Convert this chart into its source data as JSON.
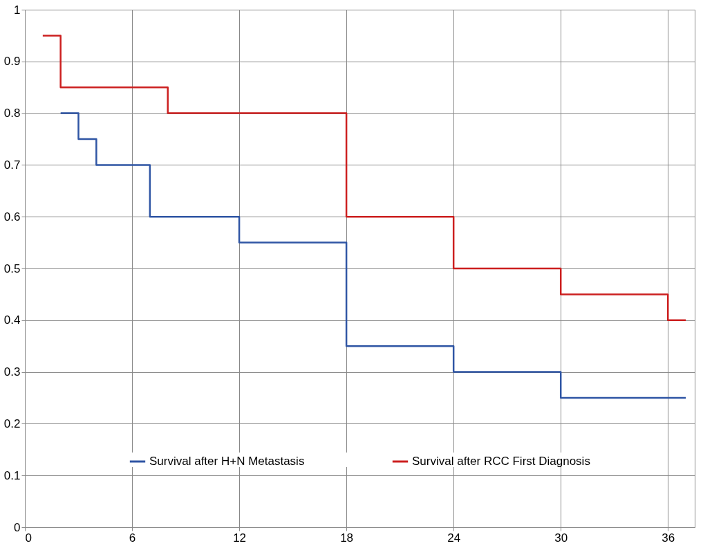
{
  "chart_data": {
    "type": "step",
    "xlim": [
      0,
      37.5
    ],
    "ylim": [
      0,
      1
    ],
    "xticks": [
      0,
      6,
      12,
      18,
      24,
      30,
      36
    ],
    "yticks": [
      0,
      0.1,
      0.2,
      0.3,
      0.4,
      0.5,
      0.6,
      0.7,
      0.8,
      0.9,
      1
    ],
    "grid": true,
    "legend": "bottom",
    "line_style": "solid",
    "marker": "none",
    "series": [
      {
        "name": "Survival after H+N Metastasis",
        "color": "#2f55a4",
        "x": [
          2,
          3,
          4,
          7,
          12,
          18,
          24,
          30,
          37
        ],
        "values": [
          0.8,
          0.75,
          0.7,
          0.6,
          0.55,
          0.35,
          0.3,
          0.25,
          0.25
        ]
      },
      {
        "name": "Survival after RCC First Diagnosis",
        "color": "#cc1f1f",
        "x": [
          1,
          2,
          8,
          18,
          24,
          30,
          36,
          37
        ],
        "values": [
          0.95,
          0.85,
          0.8,
          0.6,
          0.5,
          0.45,
          0.4,
          0.4
        ]
      }
    ]
  }
}
